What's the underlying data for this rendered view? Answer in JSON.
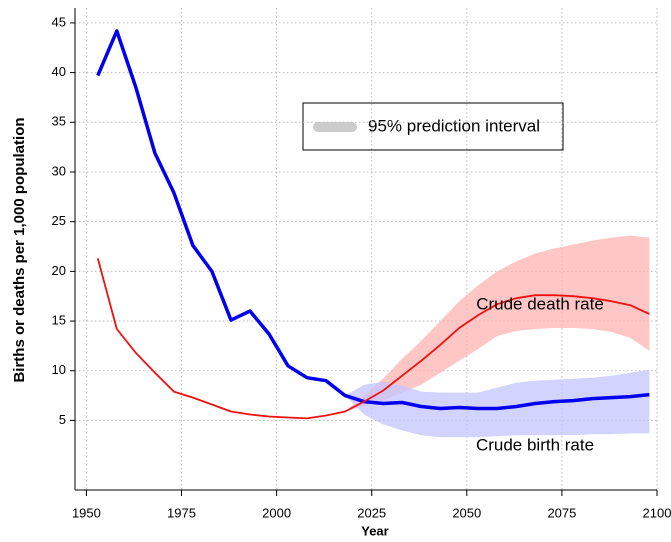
{
  "chart_data": {
    "type": "line",
    "x_label": "Year",
    "y_label": "Births or deaths per 1,000 population",
    "xlim": [
      1947,
      2100
    ],
    "xticks": [
      1950,
      1975,
      2000,
      2025,
      2050,
      2075,
      2100
    ],
    "ylim": [
      -2,
      46.5
    ],
    "yticks": [
      5,
      10,
      15,
      20,
      25,
      30,
      35,
      40,
      45
    ],
    "grid": true,
    "x": [
      1953,
      1958,
      1963,
      1968,
      1973,
      1978,
      1983,
      1988,
      1993,
      1998,
      2003,
      2008,
      2013,
      2018,
      2023,
      2028,
      2033,
      2038,
      2043,
      2048,
      2053,
      2058,
      2063,
      2068,
      2073,
      2078,
      2083,
      2088,
      2093,
      2098
    ],
    "series": [
      {
        "name": "Crude birth rate",
        "color": "#0000ee",
        "values": [
          39.7,
          44.2,
          38.5,
          31.9,
          27.9,
          22.6,
          20.0,
          15.1,
          16.0,
          13.7,
          10.5,
          9.3,
          9.0,
          7.5,
          6.9,
          6.7,
          6.8,
          6.4,
          6.2,
          6.3,
          6.2,
          6.2,
          6.4,
          6.7,
          6.9,
          7.0,
          7.2,
          7.3,
          7.4,
          7.6
        ]
      },
      {
        "name": "Crude death rate",
        "color": "#ee1111",
        "values": [
          21.3,
          14.2,
          11.8,
          9.8,
          7.9,
          7.3,
          6.6,
          5.9,
          5.6,
          5.4,
          5.3,
          5.2,
          5.5,
          5.9,
          6.9,
          8.0,
          9.5,
          11.0,
          12.6,
          14.3,
          15.6,
          16.7,
          17.3,
          17.6,
          17.6,
          17.5,
          17.3,
          17.0,
          16.6,
          15.7
        ]
      }
    ],
    "bands": [
      {
        "color": "#ffb3b3",
        "x": [
          2018,
          2023,
          2028,
          2033,
          2038,
          2043,
          2048,
          2053,
          2058,
          2063,
          2068,
          2073,
          2078,
          2083,
          2088,
          2093,
          2098
        ],
        "lower": [
          5.9,
          6.5,
          7.0,
          7.8,
          8.6,
          9.8,
          11.0,
          12.2,
          13.5,
          14.0,
          14.2,
          14.3,
          14.3,
          14.2,
          13.9,
          13.3,
          12.0
        ],
        "upper": [
          5.9,
          7.5,
          9.2,
          11.2,
          13.0,
          15.0,
          17.0,
          18.6,
          20.0,
          21.0,
          21.8,
          22.3,
          22.7,
          23.1,
          23.4,
          23.6,
          23.4
        ]
      },
      {
        "color": "#c4c4ff",
        "x": [
          2018,
          2023,
          2028,
          2033,
          2038,
          2043,
          2048,
          2053,
          2058,
          2063,
          2068,
          2073,
          2078,
          2083,
          2088,
          2093,
          2098
        ],
        "lower": [
          7.5,
          5.6,
          4.6,
          4.0,
          3.5,
          3.3,
          3.3,
          3.3,
          3.4,
          3.5,
          3.5,
          3.5,
          3.5,
          3.6,
          3.6,
          3.7,
          3.7
        ],
        "upper": [
          7.5,
          8.6,
          8.9,
          8.5,
          7.9,
          7.8,
          7.8,
          7.8,
          8.3,
          8.8,
          9.0,
          9.1,
          9.2,
          9.3,
          9.5,
          9.8,
          10.1
        ]
      }
    ],
    "legend": {
      "label": "95% prediction interval",
      "color": "#cccccc"
    }
  }
}
